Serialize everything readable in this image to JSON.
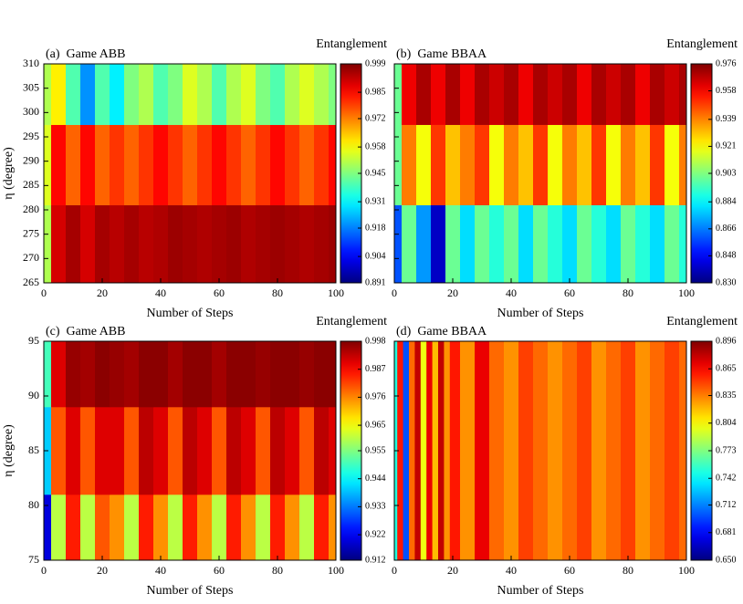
{
  "chart_data": [
    {
      "type": "heatmap",
      "title": "(a)  Game ABB",
      "xlabel": "Number of Steps",
      "ylabel": "η (degree)",
      "colorbar_label": "Entanglement",
      "colormap": "jet",
      "ytick_labels": true,
      "xlim": [
        0,
        100
      ],
      "ylim": [
        265,
        310
      ],
      "xticks": [
        0,
        20,
        40,
        60,
        80,
        100
      ],
      "yticks": [
        265,
        270,
        275,
        280,
        285,
        290,
        295,
        300,
        305,
        310
      ],
      "zlim": [
        0.891,
        0.999
      ],
      "zticks": [
        0.891,
        0.904,
        0.918,
        0.931,
        0.945,
        0.958,
        0.972,
        0.985,
        0.999
      ],
      "x": [
        0,
        5,
        10,
        15,
        20,
        25,
        30,
        35,
        40,
        45,
        50,
        55,
        60,
        65,
        70,
        75,
        80,
        85,
        90,
        95,
        100
      ],
      "y": [
        272,
        290,
        305
      ],
      "z": [
        [
          0.95,
          0.99,
          0.995,
          0.99,
          0.995,
          0.993,
          0.995,
          0.993,
          0.994,
          0.996,
          0.995,
          0.994,
          0.995,
          0.996,
          0.994,
          0.995,
          0.996,
          0.995,
          0.994,
          0.995,
          0.996
        ],
        [
          0.955,
          0.985,
          0.975,
          0.985,
          0.975,
          0.98,
          0.975,
          0.98,
          0.985,
          0.98,
          0.975,
          0.98,
          0.985,
          0.98,
          0.975,
          0.98,
          0.985,
          0.98,
          0.975,
          0.98,
          0.985
        ],
        [
          0.95,
          0.96,
          0.94,
          0.92,
          0.94,
          0.93,
          0.945,
          0.95,
          0.94,
          0.945,
          0.955,
          0.95,
          0.94,
          0.95,
          0.955,
          0.945,
          0.94,
          0.95,
          0.955,
          0.95,
          0.945
        ]
      ]
    },
    {
      "type": "heatmap",
      "title": "(b)  Game BBAA",
      "xlabel": "Number of Steps",
      "colorbar_label": "Entanglement",
      "colormap": "jet",
      "ytick_labels": false,
      "xlim": [
        0,
        100
      ],
      "ylim": [
        265,
        310
      ],
      "xticks": [
        0,
        20,
        40,
        60,
        80,
        100
      ],
      "yticks": [
        265,
        270,
        275,
        280,
        285,
        290,
        295,
        300,
        305,
        310
      ],
      "zlim": [
        0.83,
        0.976
      ],
      "zticks": [
        {
          "value": 0.83,
          "label": "0.830"
        },
        0.848,
        0.866,
        0.884,
        0.903,
        0.921,
        0.939,
        0.958,
        0.976
      ],
      "x": [
        0,
        5,
        10,
        15,
        20,
        25,
        30,
        35,
        40,
        45,
        50,
        55,
        60,
        65,
        70,
        75,
        80,
        85,
        90,
        95,
        100
      ],
      "y": [
        272,
        290,
        305
      ],
      "z": [
        [
          0.86,
          0.9,
          0.87,
          0.84,
          0.9,
          0.88,
          0.9,
          0.89,
          0.9,
          0.88,
          0.9,
          0.89,
          0.88,
          0.9,
          0.89,
          0.88,
          0.9,
          0.89,
          0.88,
          0.9,
          0.89
        ],
        [
          0.9,
          0.94,
          0.92,
          0.95,
          0.93,
          0.94,
          0.95,
          0.92,
          0.94,
          0.93,
          0.95,
          0.92,
          0.94,
          0.93,
          0.95,
          0.92,
          0.94,
          0.93,
          0.95,
          0.92,
          0.94
        ],
        [
          0.9,
          0.96,
          0.97,
          0.96,
          0.97,
          0.96,
          0.97,
          0.965,
          0.97,
          0.96,
          0.97,
          0.965,
          0.97,
          0.96,
          0.97,
          0.965,
          0.97,
          0.96,
          0.97,
          0.965,
          0.97
        ]
      ]
    },
    {
      "type": "heatmap",
      "title": "(c)  Game ABB",
      "xlabel": "Number of Steps",
      "ylabel": "η (degree)",
      "colorbar_label": "Entanglement",
      "colormap": "jet",
      "ytick_labels": true,
      "xlim": [
        0,
        100
      ],
      "ylim": [
        75,
        95
      ],
      "xticks": [
        0,
        20,
        40,
        60,
        80,
        100
      ],
      "yticks": [
        75,
        80,
        85,
        90,
        95
      ],
      "zlim": [
        0.912,
        0.998
      ],
      "zticks": [
        0.912,
        0.922,
        0.933,
        0.944,
        0.955,
        0.965,
        0.976,
        0.987,
        0.998
      ],
      "x": [
        0,
        5,
        10,
        15,
        20,
        25,
        30,
        35,
        40,
        45,
        50,
        55,
        60,
        65,
        70,
        75,
        80,
        85,
        90,
        95,
        100
      ],
      "y": [
        77,
        85,
        93
      ],
      "z": [
        [
          0.92,
          0.96,
          0.985,
          0.96,
          0.98,
          0.975,
          0.96,
          0.985,
          0.975,
          0.96,
          0.985,
          0.975,
          0.96,
          0.985,
          0.975,
          0.96,
          0.985,
          0.975,
          0.96,
          0.985,
          0.975
        ],
        [
          0.94,
          0.98,
          0.99,
          0.98,
          0.99,
          0.99,
          0.98,
          0.993,
          0.99,
          0.98,
          0.993,
          0.99,
          0.98,
          0.993,
          0.99,
          0.98,
          0.993,
          0.99,
          0.98,
          0.993,
          0.99
        ],
        [
          0.95,
          0.99,
          0.996,
          0.995,
          0.997,
          0.996,
          0.995,
          0.997,
          0.997,
          0.995,
          0.997,
          0.997,
          0.995,
          0.997,
          0.997,
          0.996,
          0.997,
          0.997,
          0.996,
          0.997,
          0.997
        ]
      ]
    },
    {
      "type": "heatmap",
      "title": "(d)  Game BBAA",
      "xlabel": "Number of Steps",
      "colorbar_label": "Entanglement",
      "colormap": "jet",
      "ytick_labels": false,
      "xlim": [
        0,
        100
      ],
      "ylim": [
        75,
        95
      ],
      "xticks": [
        0,
        20,
        40,
        60,
        80,
        100
      ],
      "yticks": [
        75,
        80,
        85,
        90,
        95
      ],
      "zlim": [
        0.65,
        0.896
      ],
      "zticks": [
        {
          "value": 0.65,
          "label": "0.650"
        },
        0.681,
        0.712,
        0.742,
        0.773,
        0.804,
        0.835,
        0.865,
        0.896
      ],
      "x": [
        0,
        2,
        4,
        6,
        8,
        10,
        12,
        14,
        16,
        18,
        20,
        25,
        30,
        35,
        40,
        45,
        50,
        55,
        60,
        65,
        70,
        75,
        80,
        85,
        90,
        95,
        100
      ],
      "y": [
        85
      ],
      "z": [
        [
          0.75,
          0.86,
          0.7,
          0.84,
          0.88,
          0.8,
          0.87,
          0.82,
          0.88,
          0.83,
          0.86,
          0.83,
          0.87,
          0.84,
          0.83,
          0.85,
          0.84,
          0.83,
          0.84,
          0.85,
          0.83,
          0.84,
          0.85,
          0.83,
          0.84,
          0.85,
          0.84
        ]
      ]
    }
  ]
}
